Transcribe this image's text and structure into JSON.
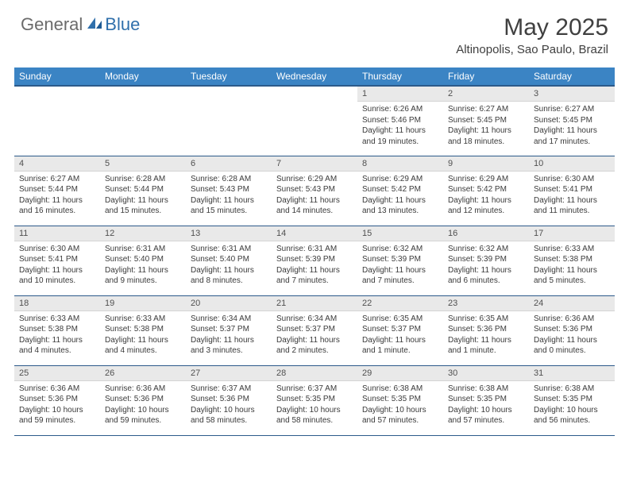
{
  "logo": {
    "general": "General",
    "blue": "Blue"
  },
  "title": "May 2025",
  "location": "Altinopolis, Sao Paulo, Brazil",
  "colors": {
    "header_bg": "#3b84c4",
    "header_text": "#ffffff",
    "daynum_bg": "#e9e9e9",
    "border": "#2c5a8a",
    "text": "#3a3a3a",
    "logo_gray": "#6b6b6b",
    "logo_blue": "#2f6fab"
  },
  "weekdays": [
    "Sunday",
    "Monday",
    "Tuesday",
    "Wednesday",
    "Thursday",
    "Friday",
    "Saturday"
  ],
  "weeks": [
    [
      null,
      null,
      null,
      null,
      {
        "n": "1",
        "sr": "6:26 AM",
        "ss": "5:46 PM",
        "dl": "11 hours and 19 minutes."
      },
      {
        "n": "2",
        "sr": "6:27 AM",
        "ss": "5:45 PM",
        "dl": "11 hours and 18 minutes."
      },
      {
        "n": "3",
        "sr": "6:27 AM",
        "ss": "5:45 PM",
        "dl": "11 hours and 17 minutes."
      }
    ],
    [
      {
        "n": "4",
        "sr": "6:27 AM",
        "ss": "5:44 PM",
        "dl": "11 hours and 16 minutes."
      },
      {
        "n": "5",
        "sr": "6:28 AM",
        "ss": "5:44 PM",
        "dl": "11 hours and 15 minutes."
      },
      {
        "n": "6",
        "sr": "6:28 AM",
        "ss": "5:43 PM",
        "dl": "11 hours and 15 minutes."
      },
      {
        "n": "7",
        "sr": "6:29 AM",
        "ss": "5:43 PM",
        "dl": "11 hours and 14 minutes."
      },
      {
        "n": "8",
        "sr": "6:29 AM",
        "ss": "5:42 PM",
        "dl": "11 hours and 13 minutes."
      },
      {
        "n": "9",
        "sr": "6:29 AM",
        "ss": "5:42 PM",
        "dl": "11 hours and 12 minutes."
      },
      {
        "n": "10",
        "sr": "6:30 AM",
        "ss": "5:41 PM",
        "dl": "11 hours and 11 minutes."
      }
    ],
    [
      {
        "n": "11",
        "sr": "6:30 AM",
        "ss": "5:41 PM",
        "dl": "11 hours and 10 minutes."
      },
      {
        "n": "12",
        "sr": "6:31 AM",
        "ss": "5:40 PM",
        "dl": "11 hours and 9 minutes."
      },
      {
        "n": "13",
        "sr": "6:31 AM",
        "ss": "5:40 PM",
        "dl": "11 hours and 8 minutes."
      },
      {
        "n": "14",
        "sr": "6:31 AM",
        "ss": "5:39 PM",
        "dl": "11 hours and 7 minutes."
      },
      {
        "n": "15",
        "sr": "6:32 AM",
        "ss": "5:39 PM",
        "dl": "11 hours and 7 minutes."
      },
      {
        "n": "16",
        "sr": "6:32 AM",
        "ss": "5:39 PM",
        "dl": "11 hours and 6 minutes."
      },
      {
        "n": "17",
        "sr": "6:33 AM",
        "ss": "5:38 PM",
        "dl": "11 hours and 5 minutes."
      }
    ],
    [
      {
        "n": "18",
        "sr": "6:33 AM",
        "ss": "5:38 PM",
        "dl": "11 hours and 4 minutes."
      },
      {
        "n": "19",
        "sr": "6:33 AM",
        "ss": "5:38 PM",
        "dl": "11 hours and 4 minutes."
      },
      {
        "n": "20",
        "sr": "6:34 AM",
        "ss": "5:37 PM",
        "dl": "11 hours and 3 minutes."
      },
      {
        "n": "21",
        "sr": "6:34 AM",
        "ss": "5:37 PM",
        "dl": "11 hours and 2 minutes."
      },
      {
        "n": "22",
        "sr": "6:35 AM",
        "ss": "5:37 PM",
        "dl": "11 hours and 1 minute."
      },
      {
        "n": "23",
        "sr": "6:35 AM",
        "ss": "5:36 PM",
        "dl": "11 hours and 1 minute."
      },
      {
        "n": "24",
        "sr": "6:36 AM",
        "ss": "5:36 PM",
        "dl": "11 hours and 0 minutes."
      }
    ],
    [
      {
        "n": "25",
        "sr": "6:36 AM",
        "ss": "5:36 PM",
        "dl": "10 hours and 59 minutes."
      },
      {
        "n": "26",
        "sr": "6:36 AM",
        "ss": "5:36 PM",
        "dl": "10 hours and 59 minutes."
      },
      {
        "n": "27",
        "sr": "6:37 AM",
        "ss": "5:36 PM",
        "dl": "10 hours and 58 minutes."
      },
      {
        "n": "28",
        "sr": "6:37 AM",
        "ss": "5:35 PM",
        "dl": "10 hours and 58 minutes."
      },
      {
        "n": "29",
        "sr": "6:38 AM",
        "ss": "5:35 PM",
        "dl": "10 hours and 57 minutes."
      },
      {
        "n": "30",
        "sr": "6:38 AM",
        "ss": "5:35 PM",
        "dl": "10 hours and 57 minutes."
      },
      {
        "n": "31",
        "sr": "6:38 AM",
        "ss": "5:35 PM",
        "dl": "10 hours and 56 minutes."
      }
    ]
  ],
  "labels": {
    "sunrise": "Sunrise: ",
    "sunset": "Sunset: ",
    "daylight": "Daylight: "
  }
}
